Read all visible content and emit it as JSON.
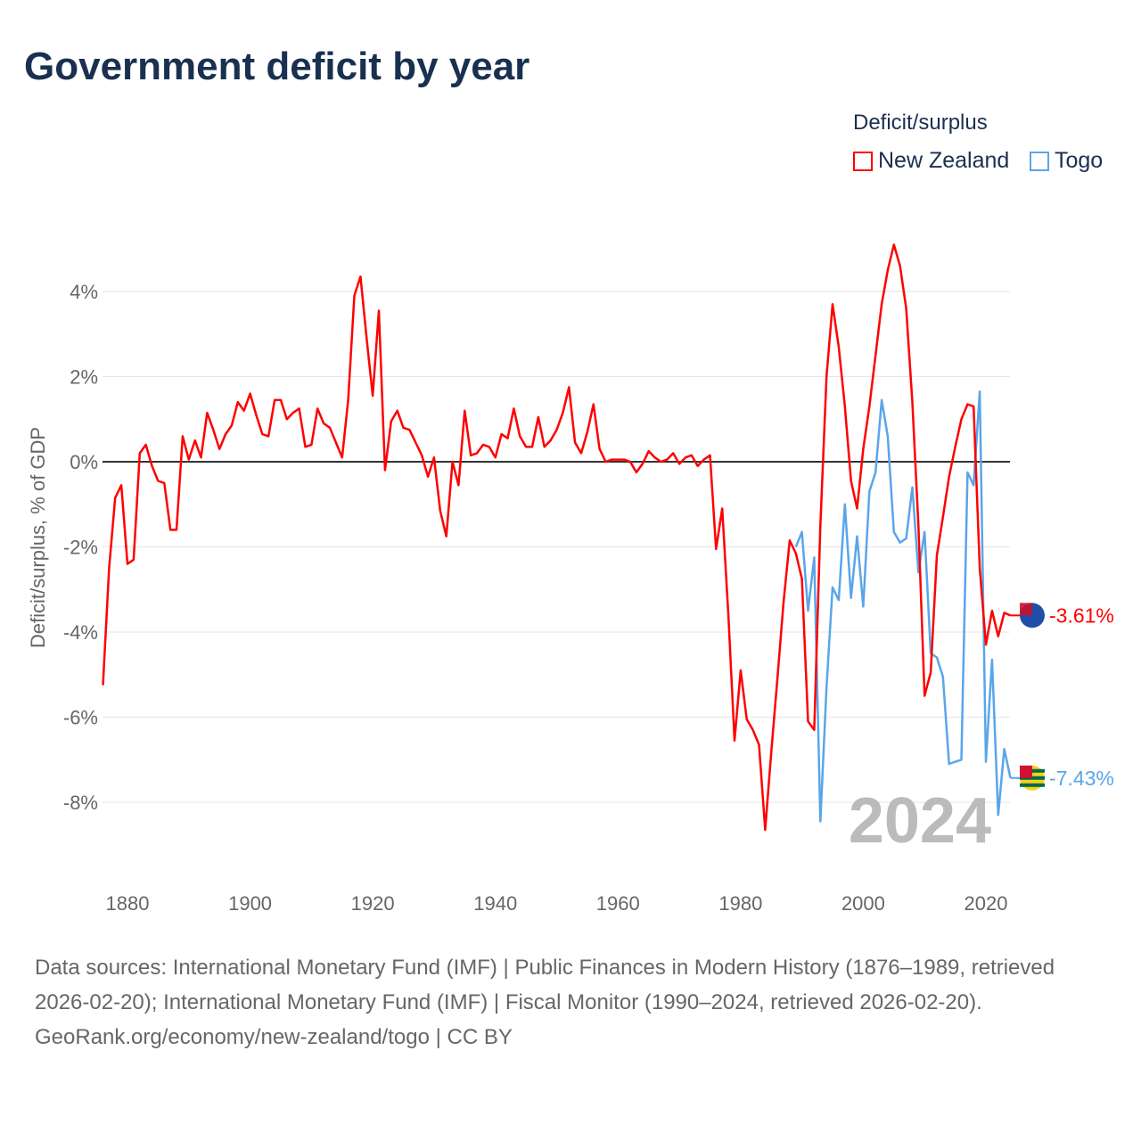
{
  "title": "Government deficit by year",
  "legend": {
    "title": "Deficit/surplus",
    "items": [
      {
        "label": "New Zealand",
        "color": "#ff0000"
      },
      {
        "label": "Togo",
        "color": "#5aa5ea"
      }
    ]
  },
  "year_label": "2024",
  "chart_data": {
    "type": "line",
    "title": "Government deficit by year",
    "xlabel": "",
    "ylabel": "Deficit/surplus, % of GDP",
    "xlim": [
      1876,
      2024
    ],
    "ylim": [
      -10,
      5.5
    ],
    "xticks": [
      1880,
      1900,
      1920,
      1940,
      1960,
      1980,
      2000,
      2020
    ],
    "xtick_labels": [
      "1880",
      "1900",
      "1920",
      "1940",
      "1960",
      "1980",
      "2000",
      "2020"
    ],
    "yticks": [
      4,
      2,
      0,
      -2,
      -4,
      -6,
      -8
    ],
    "ytick_labels": [
      "4%",
      "2%",
      "0%",
      "-2%",
      "-4%",
      "-6%",
      "-8%"
    ],
    "grid": true,
    "legend_position": "top-right",
    "series": [
      {
        "name": "New Zealand",
        "color": "#ff0000",
        "start": 1876,
        "end_label": "-3.61%",
        "values": [
          -5.25,
          -2.5,
          -0.85,
          -0.55,
          -2.4,
          -2.3,
          0.2,
          0.4,
          -0.1,
          -0.45,
          -0.5,
          -1.6,
          -1.6,
          0.6,
          0.05,
          0.5,
          0.1,
          1.15,
          0.75,
          0.3,
          0.65,
          0.85,
          1.4,
          1.2,
          1.6,
          1.1,
          0.65,
          0.6,
          1.45,
          1.45,
          1.0,
          1.15,
          1.25,
          0.35,
          0.4,
          1.25,
          0.9,
          0.8,
          0.45,
          0.1,
          1.45,
          3.9,
          4.35,
          2.9,
          1.55,
          3.55,
          -0.2,
          0.95,
          1.2,
          0.8,
          0.75,
          0.45,
          0.15,
          -0.35,
          0.1,
          -1.15,
          -1.75,
          0.0,
          -0.55,
          1.2,
          0.15,
          0.2,
          0.4,
          0.35,
          0.1,
          0.65,
          0.55,
          1.25,
          0.6,
          0.35,
          0.35,
          1.05,
          0.35,
          0.5,
          0.75,
          1.15,
          1.75,
          0.45,
          0.2,
          0.7,
          1.35,
          0.3,
          0.0,
          0.05,
          0.05,
          0.05,
          0.0,
          -0.25,
          -0.05,
          0.25,
          0.1,
          0.0,
          0.05,
          0.2,
          -0.05,
          0.1,
          0.15,
          -0.1,
          0.05,
          0.15,
          -2.05,
          -1.1,
          -3.6,
          -6.55,
          -4.9,
          -6.05,
          -6.3,
          -6.65,
          -8.65,
          -6.8,
          -5.1,
          -3.3,
          -1.85,
          -2.15,
          -2.75,
          -6.1,
          -6.3,
          -1.5,
          2.0,
          3.7,
          2.7,
          1.3,
          -0.45,
          -1.1,
          0.3,
          1.3,
          2.5,
          3.7,
          4.5,
          5.1,
          4.6,
          3.6,
          1.4,
          -1.5,
          -5.5,
          -4.95,
          -2.2,
          -1.3,
          -0.35,
          0.35,
          1.0,
          1.35,
          1.3,
          -2.5,
          -4.3,
          -3.5,
          -4.1,
          -3.55,
          -3.61
        ]
      },
      {
        "name": "Togo",
        "color": "#5aa5ea",
        "start": 1989,
        "end_label": "-7.43%",
        "values": [
          -2.0,
          -1.65,
          -3.5,
          -2.25,
          -8.45,
          -5.3,
          -2.95,
          -3.25,
          -1.0,
          -3.2,
          -1.75,
          -3.4,
          -0.7,
          -0.25,
          1.45,
          0.6,
          -1.65,
          -1.9,
          -1.8,
          -0.6,
          -2.6,
          -1.65,
          -4.5,
          -4.6,
          -5.05,
          -7.1,
          -7.05,
          -7.0,
          -0.25,
          -0.55,
          1.65,
          -7.05,
          -4.65,
          -8.3,
          -6.75,
          -7.43
        ]
      }
    ]
  },
  "sources": "Data sources: International Monetary Fund (IMF) | Public Finances in Modern History (1876–1989, retrieved 2026-02-20); International Monetary Fund (IMF) | Fiscal Monitor (1990–2024, retrieved 2026-02-20).",
  "attribution": "GeoRank.org/economy/new-zealand/togo | CC BY"
}
